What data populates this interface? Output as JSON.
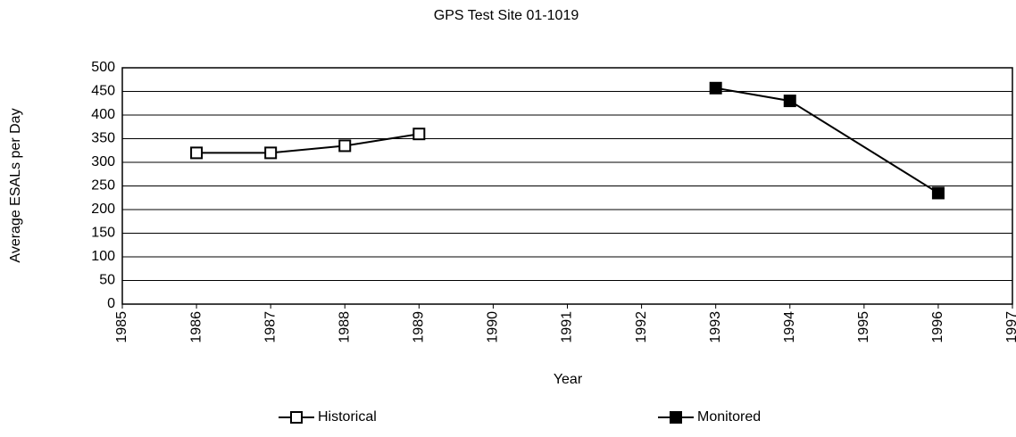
{
  "chart_data": {
    "type": "line",
    "title": "GPS Test Site 01-1019",
    "x_label": "Year",
    "y_label": "Average ESALs per Day",
    "x": [
      1986,
      1987,
      1988,
      1989,
      1993,
      1994,
      1996
    ],
    "series": [
      {
        "name": "Historical",
        "color": "#000000",
        "marker": "open-square",
        "values": [
          320,
          320,
          335,
          360,
          null,
          null,
          null
        ]
      },
      {
        "name": "Monitored",
        "color": "#000000",
        "marker": "filled-square",
        "values": [
          null,
          null,
          null,
          null,
          457,
          430,
          235
        ]
      }
    ],
    "xlim": [
      1985,
      1997
    ],
    "xticks": [
      1985,
      1986,
      1987,
      1988,
      1989,
      1990,
      1991,
      1992,
      1993,
      1994,
      1995,
      1996,
      1997
    ],
    "ylim": [
      0,
      500
    ],
    "yticks": [
      0,
      50,
      100,
      150,
      200,
      250,
      300,
      350,
      400,
      450,
      500
    ],
    "grid": true,
    "legend": "bottom"
  }
}
